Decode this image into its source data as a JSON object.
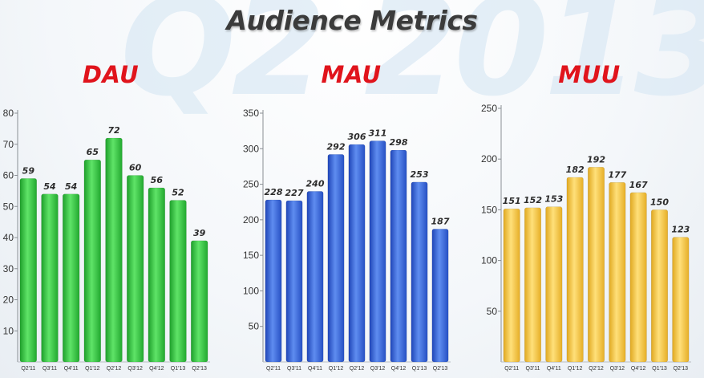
{
  "watermark": "Q2 2013",
  "page_title": "Audience Metrics",
  "chart_data": [
    {
      "type": "bar",
      "title": "DAU",
      "categories": [
        "Q2'11",
        "Q3'11",
        "Q4'11",
        "Q1'12",
        "Q2'12",
        "Q3'12",
        "Q4'12",
        "Q1'13",
        "Q2'13"
      ],
      "values": [
        59,
        54,
        54,
        65,
        72,
        60,
        56,
        52,
        39
      ],
      "data_labels": [
        "59",
        "54",
        "54",
        "65",
        "72",
        "60",
        "56",
        "52",
        "39"
      ],
      "ylim": [
        0,
        80
      ],
      "yticks": [
        10,
        20,
        30,
        40,
        50,
        60,
        70,
        80
      ],
      "ytick_labels": [
        "10",
        "20",
        "30",
        "40",
        "50",
        "60",
        "70",
        "80"
      ],
      "color": "#3fcf4a",
      "grid": false
    },
    {
      "type": "bar",
      "title": "MAU",
      "categories": [
        "Q2'11",
        "Q3'11",
        "Q4'11",
        "Q1'12",
        "Q2'12",
        "Q3'12",
        "Q4'12",
        "Q1'13",
        "Q2'13"
      ],
      "values": [
        228,
        227,
        240,
        292,
        306,
        311,
        298,
        253,
        187
      ],
      "data_labels": [
        "228",
        "227",
        "240",
        "292",
        "306",
        "311",
        "298",
        "253",
        "187"
      ],
      "ylim": [
        0,
        350
      ],
      "yticks": [
        50,
        100,
        150,
        200,
        250,
        300,
        350
      ],
      "ytick_labels": [
        "50",
        "100",
        "150",
        "200",
        "250",
        "300",
        "350"
      ],
      "color": "#3b6be0",
      "grid": false
    },
    {
      "type": "bar",
      "title": "MUU",
      "categories": [
        "Q2'11",
        "Q3'11",
        "Q4'11",
        "Q1'12",
        "Q2'12",
        "Q3'12",
        "Q4'12",
        "Q1'13",
        "Q2'13"
      ],
      "values": [
        151,
        152,
        153,
        182,
        192,
        177,
        167,
        150,
        123
      ],
      "data_labels": [
        "151",
        "152",
        "153",
        "182",
        "192",
        "177",
        "167",
        "150",
        "123"
      ],
      "ylim": [
        0,
        250
      ],
      "yticks": [
        50,
        100,
        150,
        200,
        250
      ],
      "ytick_labels": [
        "50",
        "100",
        "150",
        "200",
        "250"
      ],
      "color": "#f5c94a",
      "grid": false
    }
  ]
}
